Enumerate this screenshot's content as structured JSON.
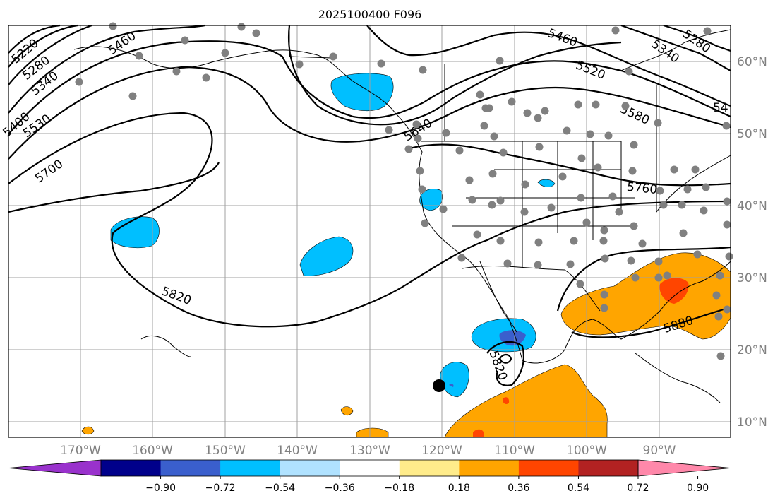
{
  "title": "2025100400 F096",
  "lon_labels": [
    "170°W",
    "160°W",
    "150°W",
    "140°W",
    "130°W",
    "120°W",
    "110°W",
    "100°W",
    "90°W"
  ],
  "lat_labels": [
    "60°N",
    "50°N",
    "40°N",
    "30°N",
    "20°N",
    "10°N"
  ],
  "contour_labels": [
    "5220",
    "5280",
    "5340",
    "5460",
    "5400",
    "5530",
    "5700",
    "5460",
    "5520",
    "5580",
    "5340",
    "5280",
    "54",
    "5640",
    "5760",
    "5820",
    "5820",
    "5880"
  ],
  "colorbar": {
    "ticks": [
      "−0.90",
      "−0.72",
      "−0.54",
      "−0.36",
      "−0.18",
      "0.18",
      "0.36",
      "0.54",
      "0.72",
      "0.90"
    ],
    "colors": [
      "#9932cc",
      "#00008b",
      "#3a5fcd",
      "#00bfff",
      "#b0e2ff",
      "#ffffff",
      "#ffec8b",
      "#ffa500",
      "#ff4500",
      "#b22222",
      "#ff88aa"
    ]
  },
  "anomaly_colors": {
    "cyan": "#00bfff",
    "blue": "#3a5fcd",
    "orange": "#ffa500",
    "red": "#ff4500",
    "station": "#808080"
  }
}
